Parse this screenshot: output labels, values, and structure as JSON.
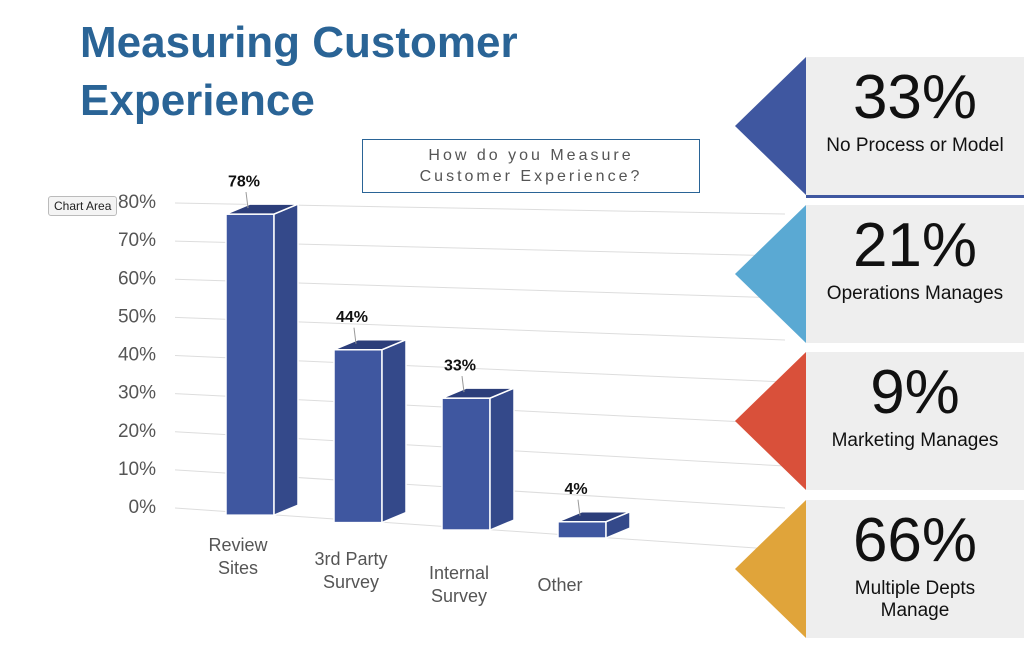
{
  "slide_title": "Measuring Customer Experience",
  "tooltip": "Chart Area",
  "chart_data": {
    "type": "bar3d",
    "title": "How do you Measure Customer Experience?",
    "categories": [
      "Review Sites",
      "3rd Party Survey",
      "Internal Survey",
      "Other"
    ],
    "values": [
      78,
      44,
      33,
      4
    ],
    "value_labels": [
      "78%",
      "44%",
      "33%",
      "4%"
    ],
    "color": "#3f57a0",
    "ylim": [
      0,
      80
    ],
    "yticks": [
      {
        "value": 0,
        "label": "0%"
      },
      {
        "value": 10,
        "label": "10%"
      },
      {
        "value": 20,
        "label": "20%"
      },
      {
        "value": 30,
        "label": "30%"
      },
      {
        "value": 40,
        "label": "40%"
      },
      {
        "value": 50,
        "label": "50%"
      },
      {
        "value": 60,
        "label": "60%"
      },
      {
        "value": 70,
        "label": "70%"
      },
      {
        "value": 80,
        "label": "80%"
      }
    ],
    "grid": true
  },
  "stats": [
    {
      "value": "33%",
      "caption": "No Process or Model",
      "color": "#3f57a0"
    },
    {
      "value": "21%",
      "caption": "Operations Manages",
      "color": "#5aa9d3"
    },
    {
      "value": "9%",
      "caption": "Marketing Manages",
      "color": "#d9503a"
    },
    {
      "value": "66%",
      "caption": "Multiple Depts Manage",
      "color": "#e0a43a"
    }
  ]
}
